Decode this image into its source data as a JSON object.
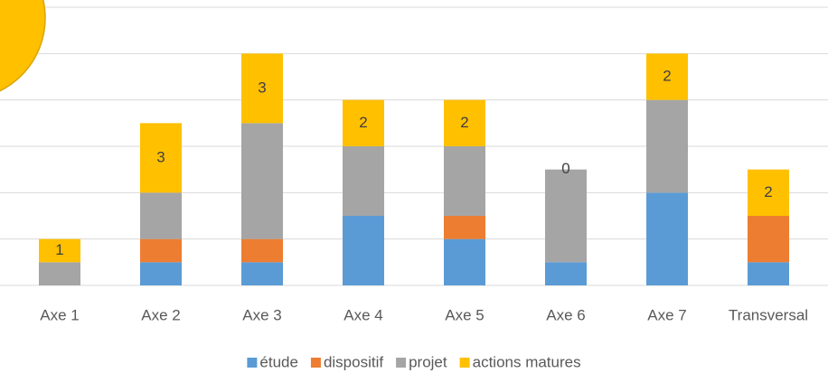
{
  "chart_data": {
    "type": "stacked_bar",
    "categories": [
      "Axe 1",
      "Axe 2",
      "Axe 3",
      "Axe 4",
      "Axe 5",
      "Axe 6",
      "Axe 7",
      "Transversal"
    ],
    "series": [
      {
        "name": "étude",
        "color": "#5b9bd5",
        "values": [
          0,
          1,
          1,
          3,
          2,
          1,
          4,
          1
        ]
      },
      {
        "name": "dispositif",
        "color": "#ed7d31",
        "values": [
          0,
          1,
          1,
          0,
          1,
          0,
          0,
          2
        ]
      },
      {
        "name": "projet",
        "color": "#a5a5a5",
        "values": [
          1,
          2,
          5,
          3,
          3,
          4,
          4,
          0
        ]
      },
      {
        "name": "actions matures",
        "color": "#ffc000",
        "values": [
          1,
          3,
          3,
          2,
          2,
          0,
          2,
          2
        ],
        "data_labels": true
      }
    ],
    "ylim": [
      0,
      12
    ],
    "yticks": [
      0,
      2,
      4,
      6,
      8,
      10,
      12
    ],
    "grid": true,
    "legend": "bottom"
  }
}
